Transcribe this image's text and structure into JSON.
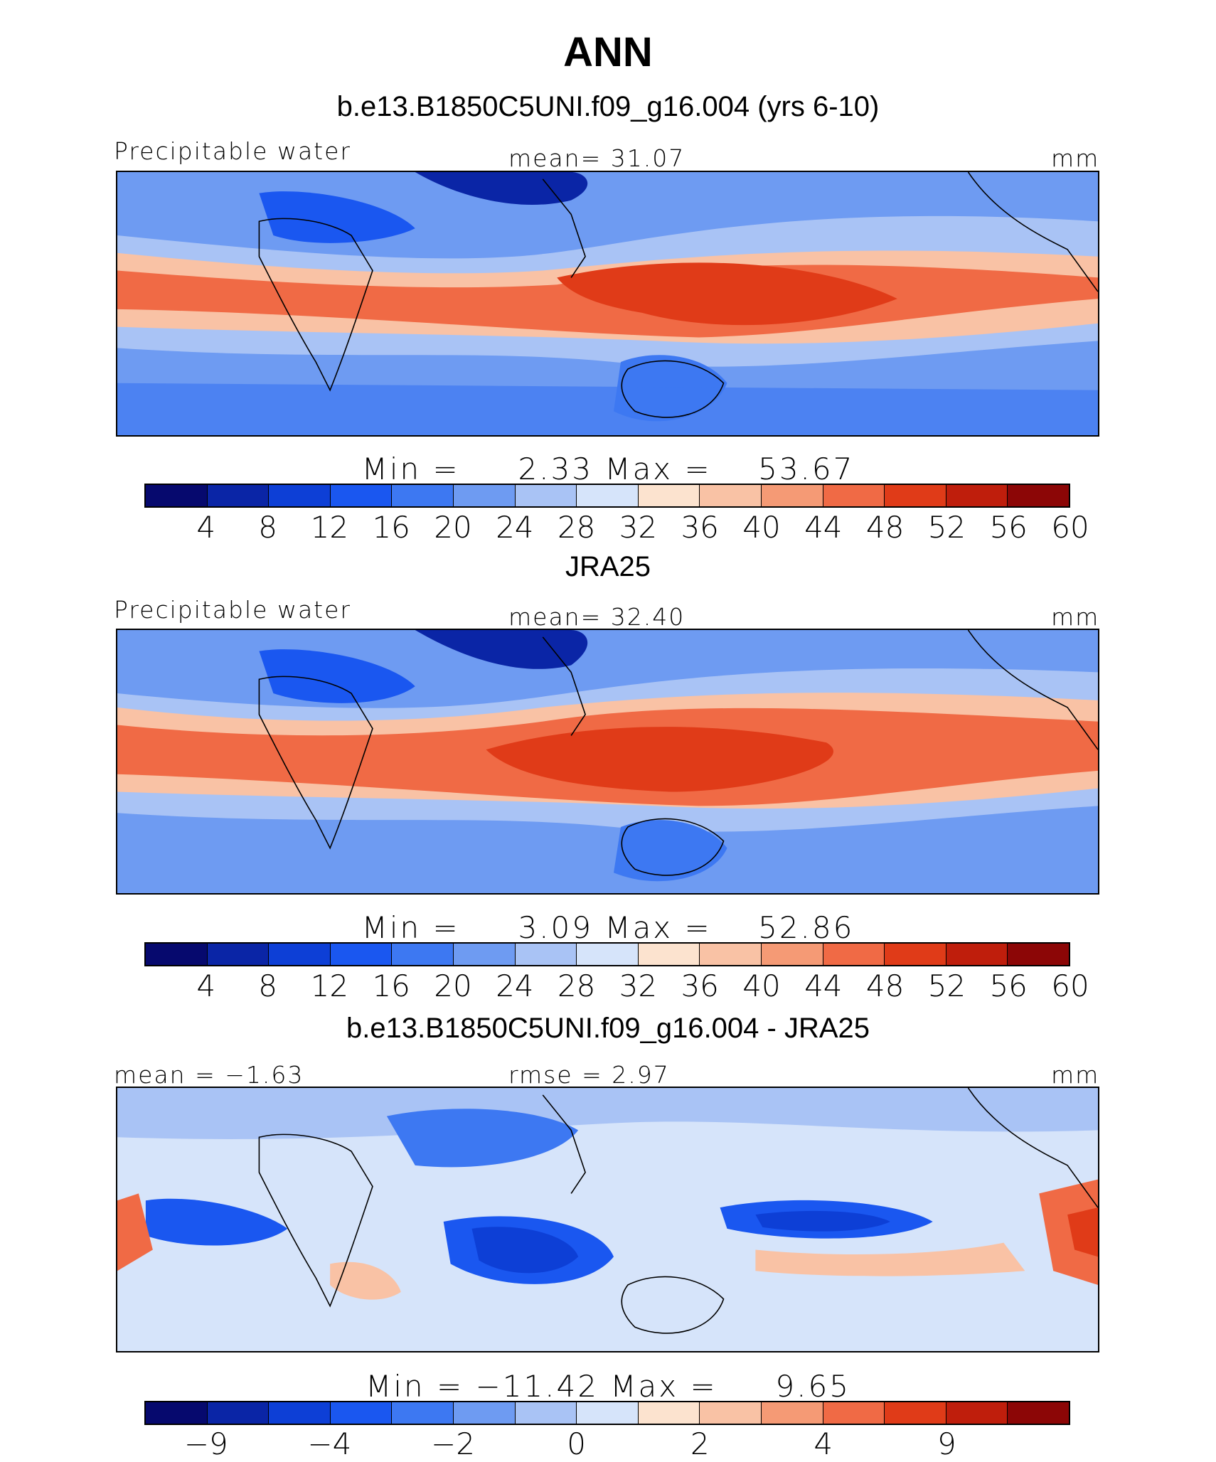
{
  "title": "ANN",
  "panels": [
    {
      "subtitle": "b.e13.B1850C5UNI.f09_g16.004 (yrs 6-10)",
      "left_label": "Precipitable water",
      "center_label": "mean=   31.07",
      "right_label": "mm",
      "minmax": "Min =     2.33 Max =    53.67",
      "palette": "abs",
      "tick_labels": [
        "4",
        "8",
        "12",
        "16",
        "20",
        "24",
        "28",
        "32",
        "36",
        "40",
        "44",
        "48",
        "52",
        "56",
        "60"
      ]
    },
    {
      "subtitle": "JRA25",
      "left_label": "Precipitable water",
      "center_label": "mean=   32.40",
      "right_label": "mm",
      "minmax": "Min =     3.09 Max =    52.86",
      "palette": "abs",
      "tick_labels": [
        "4",
        "8",
        "12",
        "16",
        "20",
        "24",
        "28",
        "32",
        "36",
        "40",
        "44",
        "48",
        "52",
        "56",
        "60"
      ]
    },
    {
      "subtitle": "b.e13.B1850C5UNI.f09_g16.004 - JRA25",
      "left_label": "mean =  −1.63",
      "center_label": "rmse =    2.97",
      "right_label": "mm",
      "minmax": "Min = −11.42 Max =     9.65",
      "palette": "diff",
      "tick_labels": [
        "−9",
        "−4",
        "−2",
        "0",
        "2",
        "4",
        "9"
      ]
    }
  ],
  "colors": {
    "abs": [
      "#06096e",
      "#0a25a6",
      "#0d3fd6",
      "#1a57f0",
      "#3d78f2",
      "#6e9bf2",
      "#a9c3f5",
      "#d6e4fa",
      "#fce3cf",
      "#f9c2a5",
      "#f59a75",
      "#f06a45",
      "#e03b18",
      "#bf1e0c",
      "#8c0606"
    ],
    "diff": [
      "#06096e",
      "#0a25a6",
      "#0d3fd6",
      "#1a57f0",
      "#3d78f2",
      "#6e9bf2",
      "#a9c3f5",
      "#d6e4fa",
      "#fce3cf",
      "#f9c2a5",
      "#f59a75",
      "#f06a45",
      "#e03b18",
      "#bf1e0c",
      "#8c0606"
    ]
  }
}
